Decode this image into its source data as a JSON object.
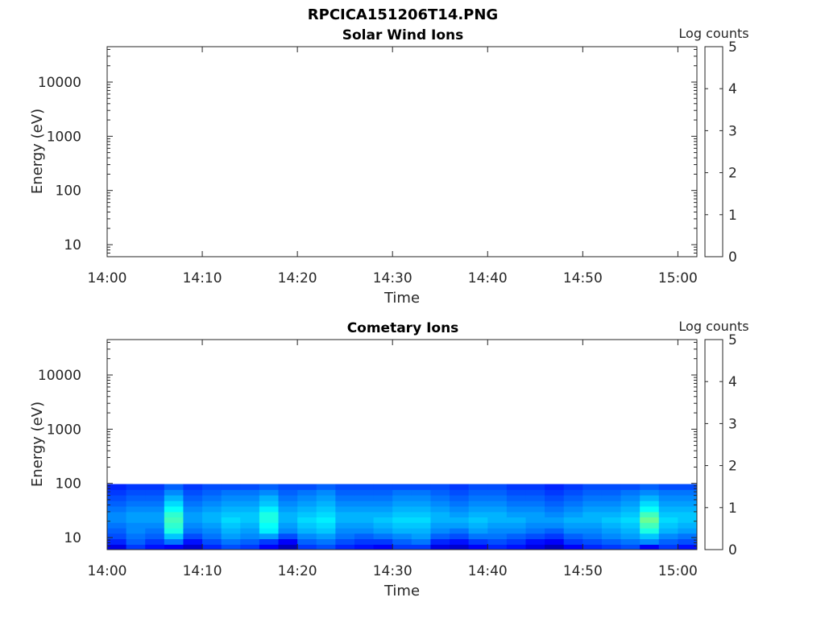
{
  "figure_title": "RPCICA151206T14.PNG",
  "chart_data": [
    {
      "type": "heatmap",
      "title": "Solar Wind Ions",
      "xlabel": "Time",
      "ylabel": "Energy (eV)",
      "xlim": [
        "14:00",
        "15:02"
      ],
      "x_tick_labels": [
        "14:00",
        "14:10",
        "14:20",
        "14:30",
        "14:40",
        "14:50",
        "15:00"
      ],
      "y_scale": "log",
      "ylim": [
        6,
        45000
      ],
      "y_tick_labels": [
        "10",
        "100",
        "1000",
        "10000"
      ],
      "colorbar": {
        "label": "Log counts",
        "range": [
          0,
          5
        ],
        "tick_labels": [
          "0",
          "1",
          "2",
          "3",
          "4",
          "5"
        ],
        "colormap": "jet"
      },
      "data_description_visible": "no counts shown (empty panel)",
      "data_rows": []
    },
    {
      "type": "heatmap",
      "title": "Cometary Ions",
      "xlabel": "Time",
      "ylabel": "Energy (eV)",
      "xlim": [
        "14:00",
        "15:02"
      ],
      "x_tick_labels": [
        "14:00",
        "14:10",
        "14:20",
        "14:30",
        "14:40",
        "14:50",
        "15:00"
      ],
      "y_scale": "log",
      "ylim": [
        6,
        45000
      ],
      "y_tick_labels": [
        "10",
        "100",
        "1000",
        "10000"
      ],
      "colorbar": {
        "label": "Log counts",
        "range": [
          0,
          5
        ],
        "tick_labels": [
          "0",
          "1",
          "2",
          "3",
          "4",
          "5"
        ],
        "colormap": "jet"
      },
      "energy_bins_eV": [
        6,
        7.5,
        9.5,
        12,
        15,
        19,
        24,
        30,
        38,
        48,
        61,
        77
      ],
      "time_minutes": [
        0,
        2,
        4,
        6,
        8,
        10,
        12,
        14,
        16,
        18,
        20,
        22,
        24,
        26,
        28,
        30,
        32,
        34,
        36,
        38,
        40,
        42,
        44,
        46,
        48,
        50,
        52,
        54,
        56,
        58,
        60,
        62
      ],
      "log_counts": [
        [
          0.5,
          0.9,
          0.7,
          0.6,
          0.4,
          0.8,
          1.0,
          0.9,
          0.6,
          0.3,
          0.9,
          1.0,
          0.8,
          0.7,
          0.6,
          0.9,
          0.9,
          0.5,
          0.4,
          0.6,
          0.8,
          0.7,
          0.5,
          0.3,
          0.6,
          0.8,
          0.9,
          1.0,
          0.6,
          0.9,
          0.7,
          0.5
        ],
        [
          0.8,
          1.1,
          0.9,
          1.2,
          0.7,
          1.0,
          1.2,
          1.1,
          0.9,
          0.6,
          1.1,
          1.2,
          1.0,
          0.9,
          0.9,
          1.1,
          1.2,
          0.8,
          0.7,
          0.9,
          1.0,
          0.9,
          0.7,
          0.6,
          0.9,
          1.0,
          1.1,
          1.2,
          1.3,
          1.1,
          1.0,
          0.8
        ],
        [
          1.0,
          1.2,
          1.1,
          1.6,
          1.0,
          1.2,
          1.4,
          1.3,
          1.4,
          1.0,
          1.3,
          1.4,
          1.2,
          1.1,
          1.2,
          1.3,
          1.4,
          1.1,
          1.0,
          1.2,
          1.2,
          1.1,
          1.0,
          0.9,
          1.1,
          1.2,
          1.3,
          1.4,
          1.6,
          1.3,
          1.2,
          1.1
        ],
        [
          1.1,
          1.3,
          1.2,
          2.0,
          1.2,
          1.3,
          1.5,
          1.4,
          1.8,
          1.3,
          1.5,
          1.6,
          1.3,
          1.3,
          1.4,
          1.5,
          1.5,
          1.3,
          1.2,
          1.4,
          1.3,
          1.3,
          1.2,
          1.1,
          1.3,
          1.3,
          1.4,
          1.5,
          2.0,
          1.5,
          1.4,
          1.3
        ],
        [
          1.2,
          1.3,
          1.3,
          2.1,
          1.3,
          1.4,
          1.6,
          1.5,
          1.9,
          1.4,
          1.6,
          1.7,
          1.4,
          1.4,
          1.5,
          1.6,
          1.6,
          1.4,
          1.4,
          1.5,
          1.4,
          1.4,
          1.3,
          1.3,
          1.4,
          1.4,
          1.5,
          1.6,
          2.2,
          1.6,
          1.5,
          1.4
        ],
        [
          1.3,
          1.4,
          1.4,
          2.2,
          1.4,
          1.5,
          1.7,
          1.6,
          2.0,
          1.5,
          1.7,
          1.8,
          1.5,
          1.5,
          1.6,
          1.7,
          1.7,
          1.5,
          1.5,
          1.6,
          1.5,
          1.5,
          1.4,
          1.4,
          1.5,
          1.5,
          1.6,
          1.7,
          2.4,
          1.7,
          1.6,
          1.5
        ],
        [
          1.3,
          1.4,
          1.4,
          2.1,
          1.4,
          1.5,
          1.6,
          1.6,
          2.0,
          1.5,
          1.6,
          1.7,
          1.5,
          1.5,
          1.5,
          1.6,
          1.6,
          1.5,
          1.4,
          1.5,
          1.5,
          1.4,
          1.4,
          1.3,
          1.4,
          1.5,
          1.5,
          1.6,
          2.2,
          1.6,
          1.6,
          1.5
        ],
        [
          1.2,
          1.3,
          1.3,
          1.9,
          1.3,
          1.4,
          1.5,
          1.5,
          1.8,
          1.4,
          1.5,
          1.6,
          1.4,
          1.4,
          1.4,
          1.5,
          1.5,
          1.4,
          1.3,
          1.4,
          1.4,
          1.3,
          1.3,
          1.2,
          1.3,
          1.4,
          1.4,
          1.5,
          1.9,
          1.5,
          1.5,
          1.4
        ],
        [
          1.1,
          1.2,
          1.2,
          1.7,
          1.2,
          1.3,
          1.4,
          1.4,
          1.6,
          1.3,
          1.4,
          1.5,
          1.3,
          1.3,
          1.3,
          1.4,
          1.4,
          1.3,
          1.2,
          1.3,
          1.3,
          1.2,
          1.2,
          1.1,
          1.2,
          1.3,
          1.3,
          1.4,
          1.7,
          1.4,
          1.4,
          1.3
        ],
        [
          1.0,
          1.1,
          1.1,
          1.5,
          1.1,
          1.2,
          1.3,
          1.3,
          1.5,
          1.2,
          1.3,
          1.4,
          1.2,
          1.2,
          1.2,
          1.3,
          1.3,
          1.2,
          1.1,
          1.2,
          1.2,
          1.1,
          1.1,
          1.0,
          1.1,
          1.2,
          1.2,
          1.3,
          1.5,
          1.3,
          1.3,
          1.2
        ],
        [
          0.9,
          1.0,
          1.0,
          1.3,
          1.0,
          1.1,
          1.2,
          1.2,
          1.3,
          1.1,
          1.2,
          1.3,
          1.1,
          1.1,
          1.1,
          1.2,
          1.2,
          1.1,
          1.0,
          1.1,
          1.1,
          1.0,
          1.0,
          0.9,
          1.0,
          1.1,
          1.1,
          1.2,
          1.3,
          1.2,
          1.2,
          1.1
        ],
        [
          0.8,
          0.9,
          0.9,
          1.1,
          0.9,
          1.0,
          1.0,
          1.0,
          1.1,
          1.0,
          1.0,
          1.1,
          1.0,
          1.0,
          1.0,
          1.0,
          1.0,
          1.0,
          0.9,
          1.0,
          1.0,
          0.9,
          0.9,
          0.8,
          0.9,
          1.0,
          1.0,
          1.0,
          1.1,
          1.0,
          1.0,
          1.0
        ]
      ]
    }
  ]
}
